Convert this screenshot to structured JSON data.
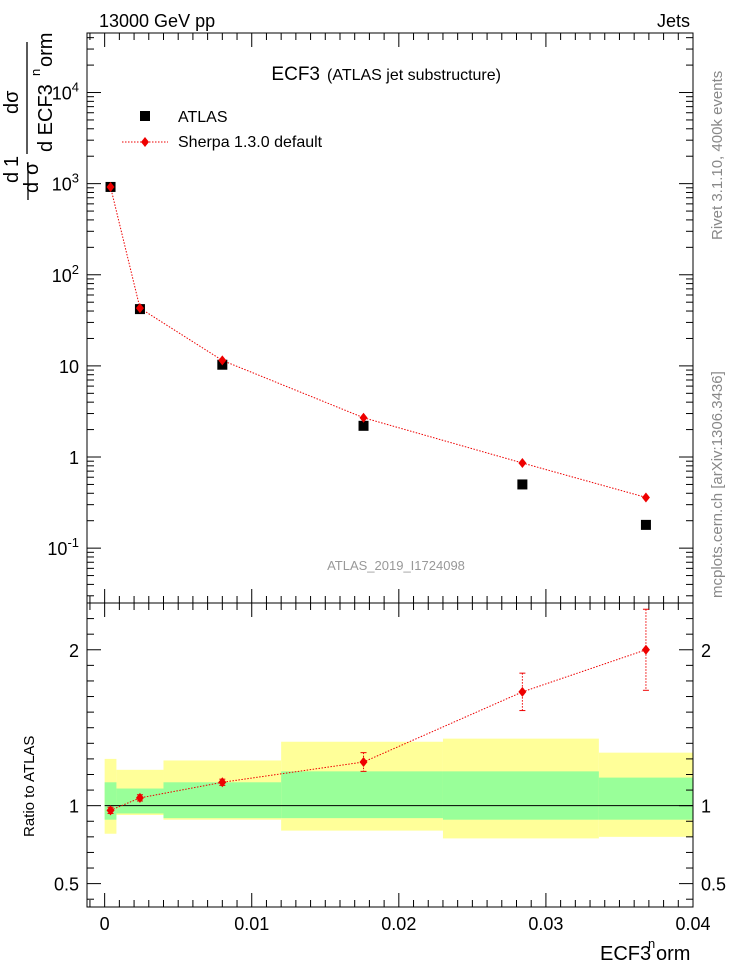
{
  "header": {
    "energy_label": "13000 GeV pp",
    "process_label": "Jets"
  },
  "side_labels": {
    "rivet": "Rivet 3.1.10,  400k events",
    "mcplots": "mcplots.cern.ch [arXiv:1306.3436]"
  },
  "colors": {
    "data_marker": "#000000",
    "mc_marker": "#ee0000",
    "band_inner": "#99ff99",
    "band_outer": "#ffff99"
  },
  "chart_data": [
    {
      "type": "scatter",
      "title": "ECF3",
      "subtitle": "(ATLAS jet substructure)",
      "ylabel": "1/σ dσ/d ECF3^norm",
      "watermark": "ATLAS_2019_I1724098",
      "y_scale": "log",
      "xlim": [
        -0.0012,
        0.04
      ],
      "ylim": [
        0.025,
        45000
      ],
      "x_ticks": [
        0,
        0.01,
        0.02,
        0.03,
        0.04
      ],
      "y_tick_labels": [
        "10^-1",
        "1",
        "10",
        "10^2",
        "10^3",
        "10^4"
      ],
      "y_tick_values": [
        0.1,
        1,
        10,
        100,
        1000,
        10000
      ],
      "legend_position": "top-left",
      "series": [
        {
          "name": "ATLAS",
          "marker": "square",
          "x": [
            0.0004,
            0.0024,
            0.008,
            0.0176,
            0.0284,
            0.0368
          ],
          "y": [
            920,
            42,
            10.3,
            2.2,
            0.5,
            0.18
          ]
        },
        {
          "name": "Sherpa 1.3.0 default",
          "marker": "diamond",
          "x": [
            0.0004,
            0.0024,
            0.008,
            0.0176,
            0.0284,
            0.0368
          ],
          "y": [
            920,
            43,
            11.5,
            2.7,
            0.86,
            0.36
          ]
        }
      ]
    },
    {
      "type": "line",
      "ylabel": "Ratio to ATLAS",
      "xlabel": "ECF3^norm",
      "xlim": [
        -0.0012,
        0.04
      ],
      "ylim": [
        0.35,
        2.3
      ],
      "x_ticks": [
        0,
        0.01,
        0.02,
        0.03,
        0.04
      ],
      "x_tick_labels": [
        "0",
        "0.01",
        "0.02",
        "0.03",
        "0.04"
      ],
      "y_ticks": [
        0.5,
        1,
        2
      ],
      "y_tick_labels": [
        "0.5",
        "1",
        "2"
      ],
      "bins": [
        {
          "lo": 0.0,
          "hi": 0.0008,
          "inner": [
            0.91,
            1.15
          ],
          "outer": [
            0.82,
            1.3
          ]
        },
        {
          "lo": 0.0008,
          "hi": 0.004,
          "inner": [
            0.95,
            1.11
          ],
          "outer": [
            0.94,
            1.23
          ]
        },
        {
          "lo": 0.004,
          "hi": 0.012,
          "inner": [
            0.92,
            1.15
          ],
          "outer": [
            0.91,
            1.29
          ]
        },
        {
          "lo": 0.012,
          "hi": 0.023,
          "inner": [
            0.92,
            1.22
          ],
          "outer": [
            0.84,
            1.41
          ]
        },
        {
          "lo": 0.023,
          "hi": 0.0336,
          "inner": [
            0.91,
            1.22
          ],
          "outer": [
            0.79,
            1.43
          ]
        },
        {
          "lo": 0.0336,
          "hi": 0.04,
          "inner": [
            0.91,
            1.18
          ],
          "outer": [
            0.8,
            1.34
          ]
        }
      ],
      "series": [
        {
          "name": "Sherpa 1.3.0 default",
          "x": [
            0.0004,
            0.0024,
            0.008,
            0.0176,
            0.0284,
            0.0368
          ],
          "y": [
            0.97,
            1.05,
            1.15,
            1.28,
            1.73,
            2.0
          ],
          "err": [
            0.02,
            0.02,
            0.02,
            0.06,
            0.12,
            0.26
          ]
        }
      ]
    }
  ]
}
